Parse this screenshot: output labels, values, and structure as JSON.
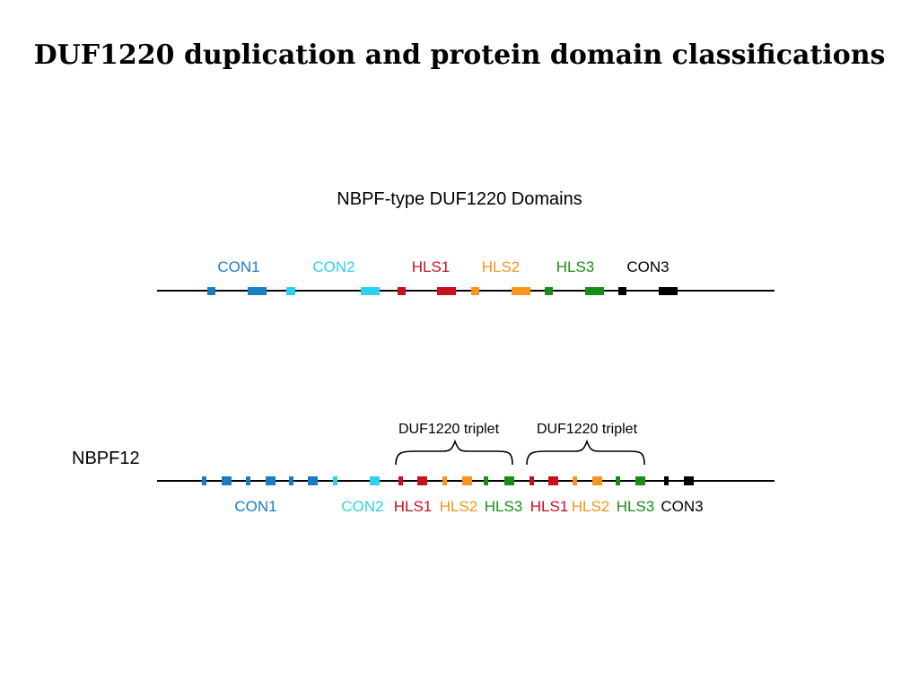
{
  "title": "DUF1220 duplication and protein domain classifications",
  "colors": {
    "con1": "#1a7dc2",
    "con2": "#2bd2f0",
    "hls1": "#c8101e",
    "hls2": "#f7941d",
    "hls3": "#1a8c1a",
    "con3": "#000000",
    "line": "#000000"
  },
  "nbpf_type": {
    "heading": "NBPF-type DUF1220 Domains",
    "labels": {
      "con1": "CON1",
      "con2": "CON2",
      "hls1": "HLS1",
      "hls2": "HLS2",
      "hls3": "HLS3",
      "con3": "CON3"
    }
  },
  "nbpf12": {
    "gene_name": "NBPF12",
    "triplet_label": "DUF1220  triplet",
    "labels": {
      "con1": "CON1",
      "con2": "CON2",
      "hls1": "HLS1",
      "hls2": "HLS2",
      "hls3": "HLS3",
      "con3": "CON3"
    }
  }
}
